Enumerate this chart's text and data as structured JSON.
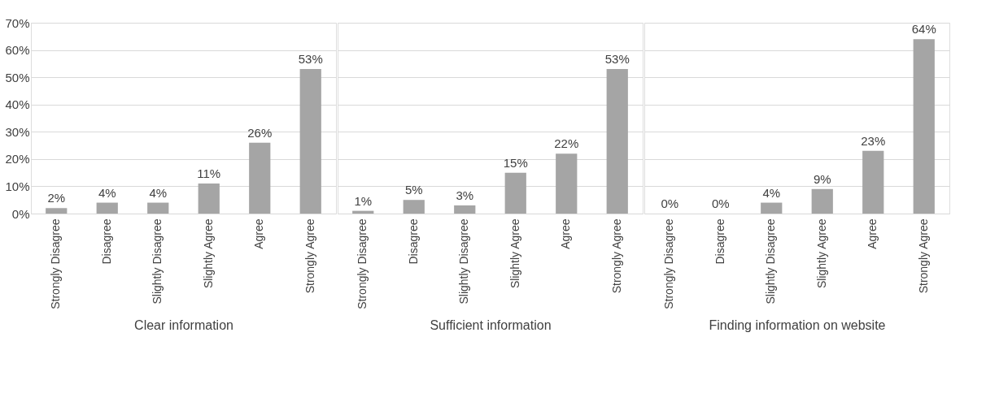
{
  "chart_data": [
    {
      "type": "bar",
      "xlabel": "Clear information",
      "categories": [
        "Strongly Disagree",
        "Disagree",
        "Slightly Disagree",
        "Slightly Agree",
        "Agree",
        "Strongly Agree"
      ],
      "values": [
        2,
        4,
        4,
        11,
        26,
        53
      ],
      "value_labels": [
        "2%",
        "4%",
        "4%",
        "11%",
        "26%",
        "53%"
      ],
      "color": "#a5a5a5",
      "ylim": [
        0,
        70
      ],
      "yticks": [
        {
          "value": 0,
          "label": "0%"
        },
        {
          "value": 10,
          "label": "10%"
        },
        {
          "value": 20,
          "label": "20%"
        },
        {
          "value": 30,
          "label": "30%"
        },
        {
          "value": 40,
          "label": "40%"
        },
        {
          "value": 50,
          "label": "50%"
        },
        {
          "value": 60,
          "label": "60%"
        },
        {
          "value": 70,
          "label": "70%"
        }
      ],
      "grid": "y"
    },
    {
      "type": "bar",
      "xlabel": "Sufficient information",
      "categories": [
        "Strongly Disagree",
        "Disagree",
        "Slightly Disagree",
        "Slightly Agree",
        "Agree",
        "Strongly Agree"
      ],
      "values": [
        1,
        5,
        3,
        15,
        22,
        53
      ],
      "value_labels": [
        "1%",
        "5%",
        "3%",
        "15%",
        "22%",
        "53%"
      ],
      "color": "#a5a5a5",
      "ylim": [
        0,
        70
      ],
      "yticks": [
        {
          "value": 0,
          "label": null
        },
        {
          "value": 10,
          "label": null
        },
        {
          "value": 20,
          "label": null
        },
        {
          "value": 30,
          "label": null
        },
        {
          "value": 40,
          "label": null
        },
        {
          "value": 50,
          "label": null
        },
        {
          "value": 60,
          "label": null
        },
        {
          "value": 70,
          "label": null
        }
      ],
      "grid": "y",
      "tick_labels": "x"
    },
    {
      "type": "bar",
      "xlabel": "Finding information on website",
      "categories": [
        "Strongly Disagree",
        "Disagree",
        "Slightly Disagree",
        "Slightly Agree",
        "Agree",
        "Strongly Agree"
      ],
      "values": [
        0,
        0,
        4,
        9,
        23,
        64
      ],
      "value_labels": [
        "0%",
        "0%",
        "4%",
        "9%",
        "23%",
        "64%"
      ],
      "color": "#a5a5a5",
      "ylim": [
        0,
        70
      ],
      "yticks": [
        {
          "value": 0,
          "label": null
        },
        {
          "value": 10,
          "label": null
        },
        {
          "value": 20,
          "label": null
        },
        {
          "value": 30,
          "label": null
        },
        {
          "value": 40,
          "label": null
        },
        {
          "value": 50,
          "label": null
        },
        {
          "value": 60,
          "label": null
        },
        {
          "value": 70,
          "label": null
        }
      ],
      "grid": "y",
      "tick_labels": "x"
    }
  ]
}
